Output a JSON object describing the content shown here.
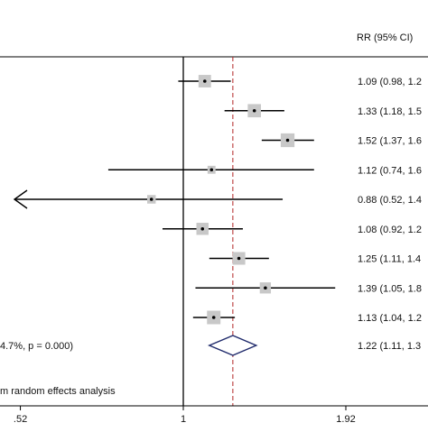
{
  "chart_data": {
    "type": "forest",
    "column_header": "RR (95% CI)",
    "x_scale": "log",
    "x_ticks": [
      {
        "value": 0.52,
        "label": ".52"
      },
      {
        "value": 1,
        "label": "1"
      },
      {
        "value": 1.92,
        "label": "1.92"
      }
    ],
    "null_line": 1,
    "pooled_reference_line": 1.22,
    "studies": [
      {
        "rr": 1.09,
        "lower": 0.98,
        "upper": 1.21,
        "weight": 0.62,
        "label": "1.09 (0.98, 1.2"
      },
      {
        "rr": 1.33,
        "lower": 1.18,
        "upper": 1.5,
        "weight": 0.75,
        "label": "1.33 (1.18, 1.5"
      },
      {
        "rr": 1.52,
        "lower": 1.37,
        "upper": 1.69,
        "weight": 0.85,
        "label": "1.52 (1.37, 1.6"
      },
      {
        "rr": 1.12,
        "lower": 0.74,
        "upper": 1.69,
        "weight": 0.08,
        "label": "1.12 (0.74, 1.6"
      },
      {
        "rr": 0.88,
        "lower": 0.52,
        "upper": 1.49,
        "weight": 0.12,
        "arrow_left": true,
        "label": "0.88 (0.52, 1.4"
      },
      {
        "rr": 1.08,
        "lower": 0.92,
        "upper": 1.27,
        "weight": 0.55,
        "label": "1.08 (0.92, 1.2"
      },
      {
        "rr": 1.25,
        "lower": 1.11,
        "upper": 1.41,
        "weight": 0.65,
        "label": "1.25 (1.11, 1.4"
      },
      {
        "rr": 1.39,
        "lower": 1.05,
        "upper": 1.84,
        "weight": 0.4,
        "label": "1.39 (1.05, 1.8"
      },
      {
        "rr": 1.13,
        "lower": 1.04,
        "upper": 1.23,
        "weight": 0.8,
        "label": "1.13 (1.04, 1.2"
      }
    ],
    "overall": {
      "rr": 1.22,
      "lower": 1.11,
      "upper": 1.34,
      "left_text": "4.7%, p = 0.000)",
      "label": "1.22 (1.11, 1.3"
    },
    "footnote": "m random effects analysis",
    "colors": {
      "square": "#c8c8c8",
      "line": "#000000",
      "reference_line": "#b22222",
      "diamond": "#1f2a6b"
    }
  }
}
